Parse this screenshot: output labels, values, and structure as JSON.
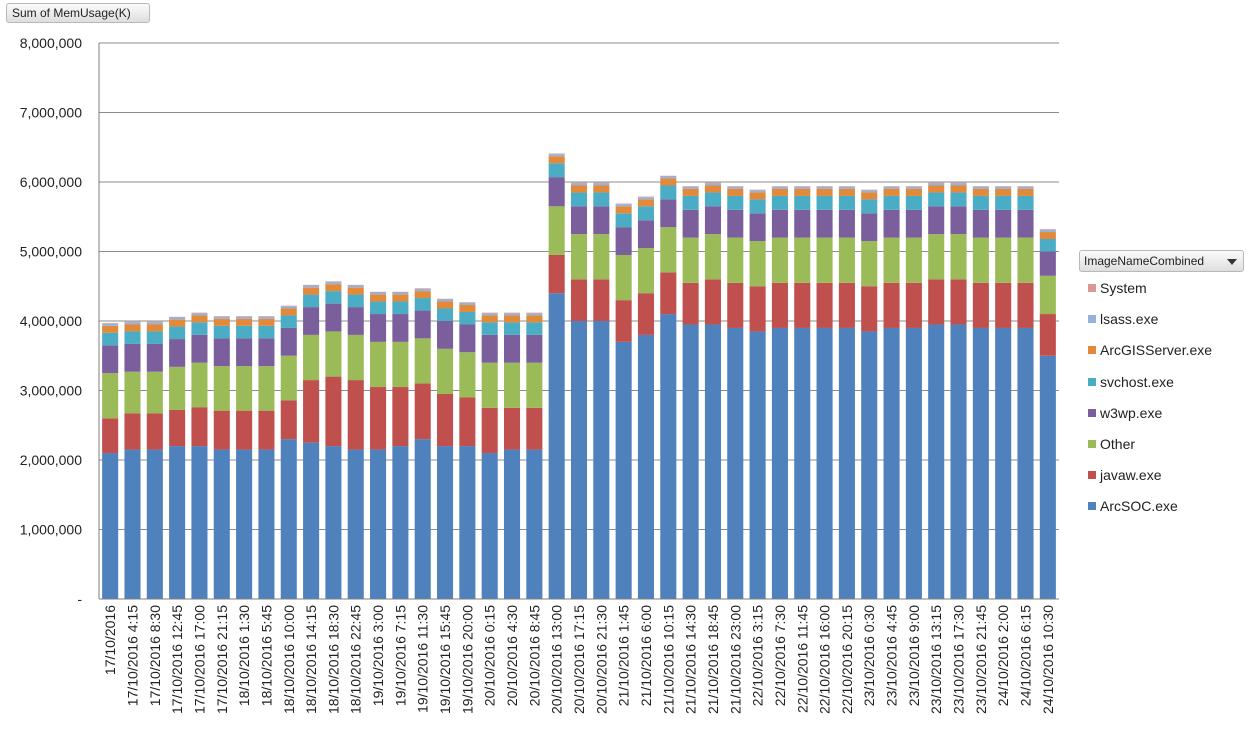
{
  "field_button": {
    "label": "Sum of MemUsage(K)"
  },
  "legend": {
    "title": "ImageNameCombined",
    "items": [
      {
        "label": "System",
        "color": "#D99694"
      },
      {
        "label": "lsass.exe",
        "color": "#95B3D7"
      },
      {
        "label": "ArcGISServer.exe",
        "color": "#E2893A"
      },
      {
        "label": "svchost.exe",
        "color": "#4BACC6"
      },
      {
        "label": "w3wp.exe",
        "color": "#7B5E9C"
      },
      {
        "label": "Other",
        "color": "#9BBB59"
      },
      {
        "label": "javaw.exe",
        "color": "#C0504D"
      },
      {
        "label": "ArcSOC.exe",
        "color": "#4F81BD"
      }
    ]
  },
  "chart_data": {
    "type": "bar",
    "stacked": true,
    "title": "",
    "xlabel": "",
    "ylabel": "",
    "ylim": [
      0,
      8000000
    ],
    "y_ticks": [
      "-",
      "1,000,000",
      "2,000,000",
      "3,000,000",
      "4,000,000",
      "5,000,000",
      "6,000,000",
      "7,000,000",
      "8,000,000"
    ],
    "grid": true,
    "legend_position": "right",
    "categories": [
      "17/10/2016",
      "17/10/2016 4:15",
      "17/10/2016 8:30",
      "17/10/2016 12:45",
      "17/10/2016 17:00",
      "17/10/2016 21:15",
      "18/10/2016 1:30",
      "18/10/2016 5:45",
      "18/10/2016 10:00",
      "18/10/2016 14:15",
      "18/10/2016 18:30",
      "18/10/2016 22:45",
      "19/10/2016 3:00",
      "19/10/2016 7:15",
      "19/10/2016 11:30",
      "19/10/2016 15:45",
      "19/10/2016 20:00",
      "20/10/2016 0:15",
      "20/10/2016 4:30",
      "20/10/2016 8:45",
      "20/10/2016 13:00",
      "20/10/2016 17:15",
      "20/10/2016 21:30",
      "21/10/2016 1:45",
      "21/10/2016 6:00",
      "21/10/2016 10:15",
      "21/10/2016 14:30",
      "21/10/2016 18:45",
      "21/10/2016 23:00",
      "22/10/2016 3:15",
      "22/10/2016 7:30",
      "22/10/2016 11:45",
      "22/10/2016 16:00",
      "22/10/2016 20:15",
      "23/10/2016 0:30",
      "23/10/2016 4:45",
      "23/10/2016 9:00",
      "23/10/2016 13:15",
      "23/10/2016 17:30",
      "23/10/2016 21:45",
      "24/10/2016 2:00",
      "24/10/2016 6:15",
      "24/10/2016 10:30"
    ],
    "series": [
      {
        "name": "ArcSOC.exe",
        "color": "#4F81BD",
        "values": [
          2100000,
          2150000,
          2150000,
          2200000,
          2200000,
          2150000,
          2150000,
          2150000,
          2300000,
          2250000,
          2200000,
          2150000,
          2150000,
          2200000,
          2300000,
          2200000,
          2200000,
          2100000,
          2150000,
          2150000,
          4400000,
          4000000,
          4000000,
          3700000,
          3800000,
          4100000,
          3950000,
          3950000,
          3900000,
          3850000,
          3900000,
          3900000,
          3900000,
          3900000,
          3850000,
          3900000,
          3900000,
          3950000,
          3950000,
          3900000,
          3900000,
          3900000,
          3500000
        ]
      },
      {
        "name": "javaw.exe",
        "color": "#C0504D",
        "values": [
          500000,
          520000,
          520000,
          520000,
          560000,
          560000,
          560000,
          560000,
          560000,
          900000,
          1000000,
          1000000,
          900000,
          850000,
          800000,
          750000,
          700000,
          650000,
          600000,
          600000,
          550000,
          600000,
          600000,
          600000,
          600000,
          600000,
          600000,
          650000,
          650000,
          650000,
          650000,
          650000,
          650000,
          650000,
          650000,
          650000,
          650000,
          650000,
          650000,
          650000,
          650000,
          650000,
          600000
        ]
      },
      {
        "name": "Other",
        "color": "#9BBB59",
        "values": [
          650000,
          600000,
          600000,
          620000,
          640000,
          640000,
          640000,
          640000,
          640000,
          650000,
          650000,
          650000,
          650000,
          650000,
          650000,
          650000,
          650000,
          650000,
          650000,
          650000,
          700000,
          650000,
          650000,
          650000,
          650000,
          650000,
          650000,
          650000,
          650000,
          650000,
          650000,
          650000,
          650000,
          650000,
          650000,
          650000,
          650000,
          650000,
          650000,
          650000,
          650000,
          650000,
          550000
        ]
      },
      {
        "name": "w3wp.exe",
        "color": "#7B5E9C",
        "values": [
          400000,
          400000,
          400000,
          400000,
          400000,
          400000,
          400000,
          400000,
          400000,
          400000,
          400000,
          400000,
          400000,
          400000,
          400000,
          400000,
          400000,
          400000,
          400000,
          400000,
          420000,
          400000,
          400000,
          400000,
          400000,
          400000,
          400000,
          400000,
          400000,
          400000,
          400000,
          400000,
          400000,
          400000,
          400000,
          400000,
          400000,
          400000,
          400000,
          400000,
          400000,
          400000,
          350000
        ]
      },
      {
        "name": "svchost.exe",
        "color": "#4BACC6",
        "values": [
          180000,
          180000,
          180000,
          180000,
          180000,
          180000,
          180000,
          180000,
          180000,
          180000,
          180000,
          180000,
          180000,
          180000,
          180000,
          180000,
          180000,
          180000,
          180000,
          180000,
          200000,
          200000,
          200000,
          200000,
          200000,
          200000,
          200000,
          200000,
          200000,
          200000,
          200000,
          200000,
          200000,
          200000,
          200000,
          200000,
          200000,
          200000,
          200000,
          200000,
          200000,
          200000,
          180000
        ]
      },
      {
        "name": "ArcGISServer.exe",
        "color": "#E2893A",
        "values": [
          100000,
          100000,
          100000,
          100000,
          100000,
          100000,
          100000,
          100000,
          100000,
          100000,
          100000,
          100000,
          100000,
          100000,
          100000,
          100000,
          100000,
          100000,
          100000,
          100000,
          100000,
          100000,
          100000,
          100000,
          100000,
          100000,
          100000,
          100000,
          100000,
          100000,
          100000,
          100000,
          100000,
          100000,
          100000,
          100000,
          100000,
          100000,
          100000,
          100000,
          100000,
          100000,
          100000
        ]
      },
      {
        "name": "lsass.exe",
        "color": "#95B3D7",
        "values": [
          30000,
          30000,
          30000,
          30000,
          30000,
          30000,
          30000,
          30000,
          30000,
          30000,
          30000,
          30000,
          30000,
          30000,
          30000,
          30000,
          30000,
          30000,
          30000,
          30000,
          30000,
          30000,
          30000,
          30000,
          30000,
          30000,
          30000,
          30000,
          30000,
          30000,
          30000,
          30000,
          30000,
          30000,
          30000,
          30000,
          30000,
          30000,
          30000,
          30000,
          30000,
          30000,
          30000
        ]
      },
      {
        "name": "System",
        "color": "#D99694",
        "values": [
          10000,
          10000,
          10000,
          10000,
          10000,
          10000,
          10000,
          10000,
          10000,
          10000,
          10000,
          10000,
          10000,
          10000,
          10000,
          10000,
          10000,
          10000,
          10000,
          10000,
          10000,
          10000,
          10000,
          10000,
          10000,
          10000,
          10000,
          10000,
          10000,
          10000,
          10000,
          10000,
          10000,
          10000,
          10000,
          10000,
          10000,
          10000,
          10000,
          10000,
          10000,
          10000,
          10000
        ]
      }
    ]
  }
}
